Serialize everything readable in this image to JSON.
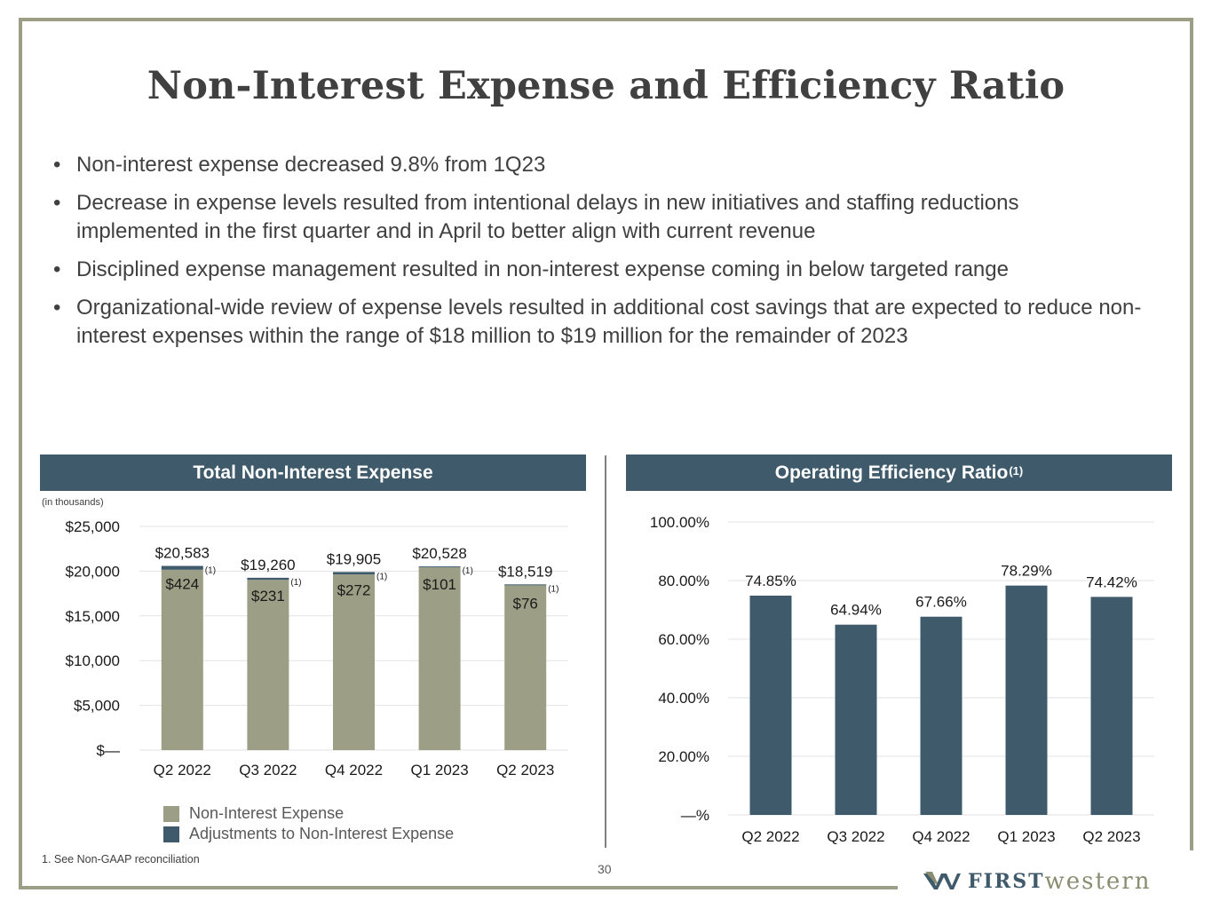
{
  "title": "Non-Interest Expense and Efficiency Ratio",
  "bullets": [
    "Non-interest expense decreased 9.8% from 1Q23",
    "Decrease in expense levels resulted from intentional delays in new initiatives and staffing reductions implemented in the first quarter and in April to better align with current revenue",
    "Disciplined expense management resulted in non-interest expense coming in below targeted range",
    "Organizational-wide review of expense levels resulted in additional cost savings that are expected to reduce non-interest expenses within the range of $18 million to $19 million for the remainder of 2023"
  ],
  "left_panel": {
    "title": "Total Non-Interest Expense",
    "units": "(in thousands)"
  },
  "right_panel": {
    "title": "Operating Efficiency Ratio",
    "title_sup": "(1)"
  },
  "footnote": "1.   See Non-GAAP reconciliation",
  "page_number": "30",
  "logo": {
    "first": "FIRST",
    "western": "western"
  },
  "colors": {
    "header": "#3e5a6b",
    "olive": "#9c9f85",
    "adjust": "#3e5a6b",
    "bar_right": "#3e5a6b"
  },
  "chart_data": [
    {
      "type": "bar",
      "stacked": true,
      "title": "Total Non-Interest Expense",
      "ylabel": "(in thousands)",
      "categories": [
        "Q2 2022",
        "Q3 2022",
        "Q4 2022",
        "Q1 2023",
        "Q2 2023"
      ],
      "series": [
        {
          "name": "Non-Interest Expense",
          "values": [
            20159,
            19029,
            19633,
            20427,
            18443
          ]
        },
        {
          "name": "Adjustments to Non-Interest Expense",
          "values": [
            424,
            231,
            272,
            101,
            76
          ],
          "labels": [
            "$424",
            "$231",
            "$272",
            "$101",
            "$76"
          ]
        }
      ],
      "total_labels": [
        "$20,583",
        "$19,260",
        "$19,905",
        "$20,528",
        "$18,519"
      ],
      "footnote_marker": "(1)",
      "ylim": [
        0,
        25000
      ],
      "yticks": [
        0,
        5000,
        10000,
        15000,
        20000,
        25000
      ],
      "ytick_labels": [
        "$—",
        "$5,000",
        "$10,000",
        "$15,000",
        "$20,000",
        "$25,000"
      ],
      "legend": [
        "Non-Interest Expense",
        "Adjustments to Non-Interest Expense"
      ]
    },
    {
      "type": "bar",
      "title": "Operating Efficiency Ratio(1)",
      "categories": [
        "Q2 2022",
        "Q3 2022",
        "Q4 2022",
        "Q1 2023",
        "Q2 2023"
      ],
      "values": [
        74.85,
        64.94,
        67.66,
        78.29,
        74.42
      ],
      "value_labels": [
        "74.85%",
        "64.94%",
        "67.66%",
        "78.29%",
        "74.42%"
      ],
      "ylim": [
        0,
        100
      ],
      "yticks": [
        0,
        20,
        40,
        60,
        80,
        100
      ],
      "ytick_labels": [
        "—%",
        "20.00%",
        "40.00%",
        "60.00%",
        "80.00%",
        "100.00%"
      ]
    }
  ]
}
